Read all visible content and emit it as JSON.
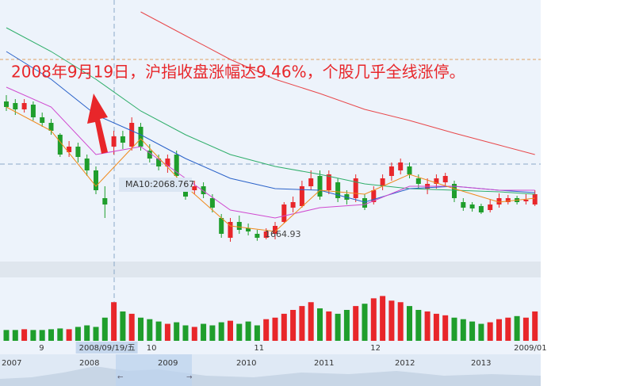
{
  "chart_data": {
    "type": "candlestick",
    "annotation": "2008年9月19日，沪指收盘涨幅达9.46%，个股几乎全线涨停。",
    "tooltip": "MA10:2068.767",
    "low_label": "1664.93",
    "categories": [
      null,
      null,
      null,
      null,
      "9",
      null,
      null,
      null,
      null,
      null,
      null,
      null,
      "2008/09/19/五",
      null,
      null,
      null,
      "10",
      null,
      null,
      null,
      null,
      null,
      null,
      null,
      null,
      null,
      null,
      null,
      "11",
      null,
      null,
      null,
      null,
      null,
      null,
      null,
      null,
      null,
      null,
      null,
      null,
      "12",
      null,
      null,
      null,
      null,
      null,
      null,
      null,
      null,
      null,
      null,
      null,
      null,
      null,
      null,
      null,
      "2009/01",
      null,
      null
    ],
    "open": [
      2368,
      2360,
      2328,
      2352,
      2288,
      2260,
      2200,
      2112,
      2140,
      2080,
      2020,
      1880,
      2140,
      2192,
      2140,
      2240,
      2120,
      2080,
      2040,
      2100,
      1960,
      1920,
      1940,
      1880,
      1780,
      1680,
      1760,
      1728,
      1700,
      1680,
      1700,
      1760,
      1832,
      1840,
      1940,
      1992,
      1920,
      1960,
      1900,
      1880,
      1880,
      1860,
      1940,
      1992,
      2020,
      2040,
      1980,
      1928,
      1952,
      1960,
      1952,
      1860,
      1848,
      1840,
      1820,
      1848,
      1860,
      1880,
      1864,
      1848
    ],
    "high": [
      2400,
      2380,
      2380,
      2368,
      2312,
      2280,
      2208,
      2168,
      2160,
      2100,
      2040,
      1940,
      2220,
      2220,
      2288,
      2260,
      2152,
      2100,
      2100,
      2120,
      1980,
      1968,
      1960,
      1900,
      1800,
      1780,
      1792,
      1752,
      1720,
      1728,
      1760,
      1860,
      1888,
      1968,
      2020,
      2020,
      2020,
      1980,
      1920,
      2000,
      1900,
      1940,
      2000,
      2060,
      2080,
      2060,
      2000,
      1980,
      2000,
      2008,
      1968,
      1880,
      1860,
      1852,
      1872,
      1904,
      1896,
      1892,
      1900,
      1920
    ],
    "low": [
      2320,
      2300,
      2312,
      2272,
      2240,
      2200,
      2088,
      2088,
      2060,
      1992,
      1900,
      1780,
      2100,
      2128,
      2120,
      2120,
      2060,
      2020,
      2008,
      1980,
      1872,
      1900,
      1880,
      1808,
      1680,
      1660,
      1700,
      1692,
      1664.93,
      1672,
      1672,
      1752,
      1808,
      1832,
      1920,
      1872,
      1900,
      1860,
      1848,
      1860,
      1820,
      1848,
      1920,
      1968,
      2000,
      1980,
      1928,
      1900,
      1928,
      1940,
      1860,
      1816,
      1812,
      1800,
      1808,
      1832,
      1848,
      1848,
      1848,
      1840
    ],
    "close": [
      2340,
      2328,
      2360,
      2288,
      2260,
      2220,
      2100,
      2140,
      2088,
      2020,
      1920,
      1848,
      2192,
      2160,
      2260,
      2140,
      2080,
      2040,
      2080,
      1992,
      1888,
      1940,
      1900,
      1832,
      1700,
      1760,
      1720,
      1712,
      1680,
      1712,
      1740,
      1848,
      1860,
      1940,
      1980,
      1888,
      2000,
      1880,
      1872,
      1980,
      1832,
      1920,
      1980,
      2040,
      2060,
      2000,
      1952,
      1952,
      1980,
      1992,
      1880,
      1832,
      1828,
      1808,
      1848,
      1880,
      1880,
      1860,
      1872,
      1900
    ],
    "volume": [
      14,
      14,
      15,
      14,
      14,
      15,
      16,
      15,
      18,
      20,
      18,
      30,
      50,
      38,
      35,
      30,
      28,
      25,
      22,
      24,
      20,
      18,
      22,
      20,
      24,
      26,
      22,
      25,
      20,
      28,
      30,
      35,
      40,
      45,
      50,
      42,
      38,
      35,
      40,
      45,
      48,
      55,
      58,
      52,
      50,
      45,
      40,
      38,
      35,
      33,
      30,
      28,
      25,
      22,
      24,
      28,
      30,
      32,
      30,
      38
    ],
    "up_color": "#e8262a",
    "down_color": "#1f9e2c",
    "ylim": [
      1580,
      2880
    ],
    "vlim": [
      0,
      80
    ],
    "overlays": [
      {
        "color": "#e8474a",
        "x": [
          0,
          5,
          10,
          15,
          20,
          25,
          30,
          35,
          40,
          45,
          50,
          55,
          59
        ],
        "values": [
          null,
          null,
          null,
          2820,
          2700,
          2580,
          2480,
          2408,
          2328,
          2272,
          2208,
          2148,
          2100
        ]
      },
      {
        "color": "#2fae6a",
        "x": [
          0,
          5,
          10,
          15,
          20,
          25,
          30,
          35,
          40,
          45,
          50,
          55,
          59
        ],
        "values": [
          2740,
          2620,
          2480,
          2320,
          2200,
          2100,
          2040,
          2000,
          1952,
          1928,
          1920,
          1912,
          1900
        ]
      },
      {
        "color": "#2a62c9",
        "x": [
          0,
          5,
          10,
          15,
          20,
          25,
          30,
          35,
          40,
          45,
          50,
          55,
          59
        ],
        "values": [
          2620,
          2480,
          2300,
          2200,
          2080,
          1980,
          1928,
          1920,
          1860,
          1928,
          1940,
          1920,
          1908
        ]
      },
      {
        "color": "#d04ad0",
        "x": [
          0,
          5,
          10,
          15,
          20,
          25,
          30,
          35,
          40,
          45,
          50,
          55,
          59
        ],
        "values": [
          2440,
          2340,
          2100,
          2140,
          1980,
          1820,
          1780,
          1832,
          1848,
          1940,
          1940,
          1920,
          1920
        ]
      },
      {
        "color": "#f08a1c",
        "x": [
          0,
          5,
          10,
          15,
          20,
          25,
          30,
          35,
          40,
          45,
          50,
          55,
          59
        ],
        "values": [
          2340,
          2220,
          1940,
          2180,
          1940,
          1740,
          1712,
          1920,
          1900,
          2000,
          1928,
          1860,
          1880
        ]
      }
    ]
  },
  "navigator": {
    "labels": [
      "2007",
      "2008",
      "2009",
      "2010",
      "2011",
      "2012",
      "2013",
      "←",
      "→"
    ]
  }
}
